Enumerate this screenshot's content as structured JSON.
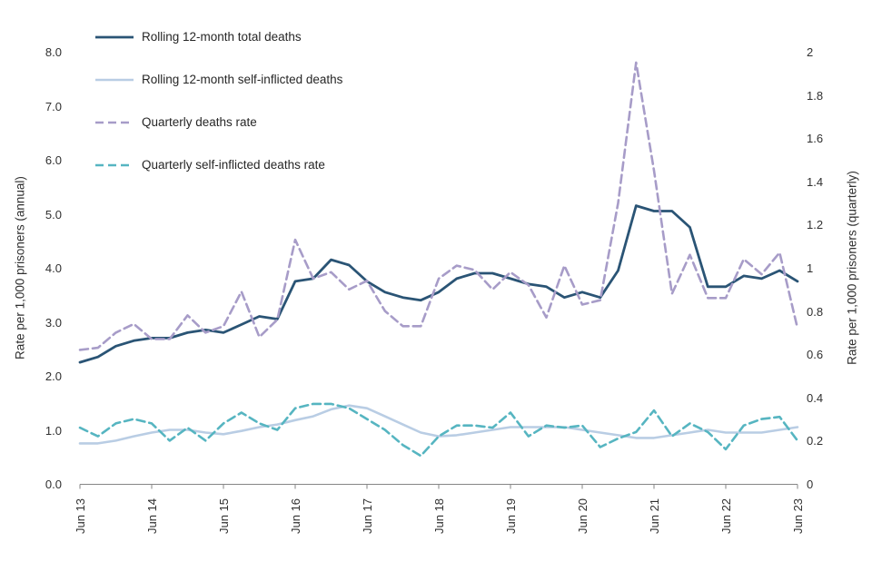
{
  "chart_data": {
    "type": "line",
    "title": "",
    "grid": false,
    "legend_position": "top-left-inside",
    "frequency": "quarterly",
    "n_points": 41,
    "x_tick_labels": [
      "Jun 13",
      "Jun 14",
      "Jun 15",
      "Jun 16",
      "Jun 17",
      "Jun 18",
      "Jun 19",
      "Jun 20",
      "Jun 21",
      "Jun 22",
      "Jun 23"
    ],
    "left_axis": {
      "label": "Rate per 1,000 prisoners (annual)",
      "range": [
        0,
        8
      ],
      "ticks": [
        "8.0",
        "7.0",
        "6.0",
        "5.0",
        "4.0",
        "3.0",
        "2.0",
        "1.0",
        "0.0"
      ]
    },
    "right_axis": {
      "label": "Rate per 1,000 prisoners (quarterly)",
      "range": [
        0,
        2
      ],
      "ticks": [
        "2",
        "1.8",
        "1.6",
        "1.4",
        "1.2",
        "1",
        "0.8",
        "0.6",
        "0.4",
        "0.2",
        "0"
      ]
    },
    "series": [
      {
        "name": "Rolling 12-month total deaths",
        "axis": "left",
        "style": "solid",
        "color": "#2a5475",
        "width": 2.8,
        "values": [
          2.25,
          2.35,
          2.55,
          2.65,
          2.7,
          2.7,
          2.8,
          2.85,
          2.8,
          2.95,
          3.1,
          3.05,
          3.75,
          3.8,
          4.15,
          4.05,
          3.75,
          3.55,
          3.45,
          3.4,
          3.55,
          3.8,
          3.9,
          3.9,
          3.8,
          3.7,
          3.65,
          3.45,
          3.55,
          3.45,
          3.95,
          5.15,
          5.05,
          5.05,
          4.75,
          3.65,
          3.65,
          3.85,
          3.8,
          3.95,
          3.75
        ]
      },
      {
        "name": "Rolling 12-month self-inflicted deaths",
        "axis": "left",
        "style": "solid",
        "color": "#b9cde4",
        "width": 2.6,
        "values": [
          0.75,
          0.75,
          0.8,
          0.88,
          0.95,
          1.0,
          1.0,
          0.95,
          0.92,
          0.98,
          1.05,
          1.1,
          1.18,
          1.25,
          1.38,
          1.45,
          1.4,
          1.25,
          1.1,
          0.95,
          0.88,
          0.9,
          0.95,
          1.0,
          1.05,
          1.05,
          1.05,
          1.05,
          1.0,
          0.95,
          0.9,
          0.85,
          0.85,
          0.9,
          0.95,
          1.0,
          0.95,
          0.95,
          0.95,
          1.0,
          1.05
        ]
      },
      {
        "name": "Quarterly deaths rate",
        "axis": "right",
        "style": "dashed",
        "color": "#a79cc8",
        "width": 2.6,
        "values": [
          0.62,
          0.63,
          0.7,
          0.74,
          0.67,
          0.67,
          0.78,
          0.7,
          0.73,
          0.89,
          0.68,
          0.76,
          1.13,
          0.95,
          0.98,
          0.9,
          0.94,
          0.8,
          0.73,
          0.73,
          0.95,
          1.01,
          0.99,
          0.9,
          0.98,
          0.92,
          0.77,
          1.01,
          0.83,
          0.85,
          1.3,
          1.95,
          1.45,
          0.88,
          1.06,
          0.86,
          0.86,
          1.04,
          0.97,
          1.07,
          0.72
        ]
      },
      {
        "name": "Quarterly self-inflicted deaths rate",
        "axis": "right",
        "style": "dashed",
        "color": "#56b5c1",
        "width": 2.6,
        "values": [
          0.26,
          0.22,
          0.28,
          0.3,
          0.28,
          0.2,
          0.26,
          0.2,
          0.28,
          0.33,
          0.28,
          0.25,
          0.35,
          0.37,
          0.37,
          0.35,
          0.3,
          0.25,
          0.18,
          0.13,
          0.22,
          0.27,
          0.27,
          0.26,
          0.33,
          0.22,
          0.27,
          0.26,
          0.27,
          0.17,
          0.21,
          0.24,
          0.34,
          0.22,
          0.28,
          0.24,
          0.16,
          0.27,
          0.3,
          0.31,
          0.2
        ]
      }
    ]
  }
}
